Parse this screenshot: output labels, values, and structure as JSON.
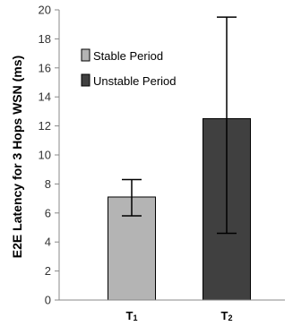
{
  "chart_data": {
    "type": "bar",
    "categories": [
      {
        "main": "T",
        "sub": "1"
      },
      {
        "main": "T",
        "sub": "2"
      }
    ],
    "values": [
      7.1,
      12.5
    ],
    "error_low": [
      5.8,
      4.6
    ],
    "error_high": [
      8.3,
      19.5
    ],
    "series_names": [
      "Stable Period",
      "Unstable Period"
    ],
    "colors": [
      "#b4b4b4",
      "#404040"
    ],
    "ylabel": "E2E Latency for 3 Hops WSN (ms)",
    "ylim": [
      0,
      20
    ],
    "yticks": [
      "0",
      "2",
      "4",
      "6",
      "8",
      "10",
      "12",
      "14",
      "16",
      "18",
      "20"
    ],
    "legend_position": "top-left",
    "grid": false
  }
}
